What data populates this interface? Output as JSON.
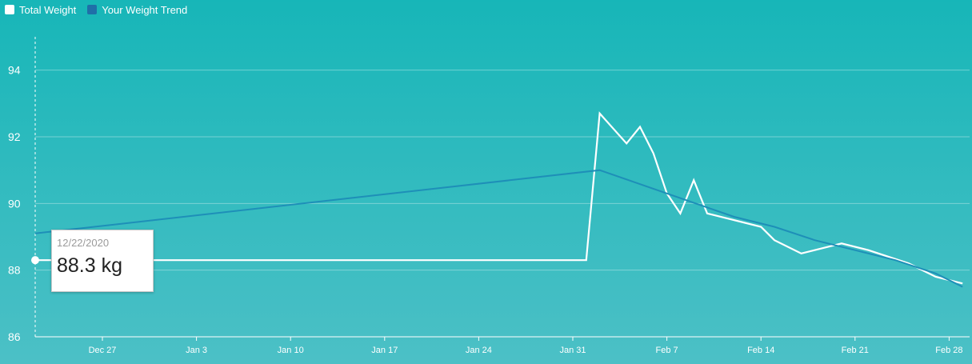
{
  "legend": {
    "items": [
      {
        "label": "Total Weight",
        "color": "#ffffff"
      },
      {
        "label": "Your Weight Trend",
        "color": "#1f6fa8"
      }
    ]
  },
  "tooltip": {
    "date": "12/22/2020",
    "value": "88.3 kg"
  },
  "colors": {
    "background_top": "#17b6b8",
    "background_bottom": "#4cc0c6",
    "total_weight_line": "#ffffff",
    "trend_line": "#1e8fb8"
  },
  "chart_data": {
    "type": "line",
    "title": "",
    "xlabel": "",
    "ylabel": "",
    "ylim": [
      86,
      95
    ],
    "xlim": [
      "2020-12-22",
      "2021-03-01"
    ],
    "grid": true,
    "legend_placement": "top-left",
    "y_ticks": [
      86,
      88,
      90,
      92,
      94
    ],
    "x_ticks": [
      {
        "date": "2020-12-27",
        "label": "Dec 27"
      },
      {
        "date": "2021-01-03",
        "label": "Jan 3"
      },
      {
        "date": "2021-01-10",
        "label": "Jan 10"
      },
      {
        "date": "2021-01-17",
        "label": "Jan 17"
      },
      {
        "date": "2021-01-24",
        "label": "Jan 24"
      },
      {
        "date": "2021-01-31",
        "label": "Jan 31"
      },
      {
        "date": "2021-02-07",
        "label": "Feb 7"
      },
      {
        "date": "2021-02-14",
        "label": "Feb 14"
      },
      {
        "date": "2021-02-21",
        "label": "Feb 21"
      },
      {
        "date": "2021-02-28",
        "label": "Feb 28"
      }
    ],
    "series": [
      {
        "name": "Total Weight",
        "color": "#ffffff",
        "points": [
          {
            "x": "2020-12-22",
            "y": 88.3
          },
          {
            "x": "2021-02-01",
            "y": 88.3
          },
          {
            "x": "2021-02-02",
            "y": 92.7
          },
          {
            "x": "2021-02-04",
            "y": 91.8
          },
          {
            "x": "2021-02-05",
            "y": 92.3
          },
          {
            "x": "2021-02-06",
            "y": 91.5
          },
          {
            "x": "2021-02-07",
            "y": 90.3
          },
          {
            "x": "2021-02-08",
            "y": 89.7
          },
          {
            "x": "2021-02-09",
            "y": 90.7
          },
          {
            "x": "2021-02-10",
            "y": 89.7
          },
          {
            "x": "2021-02-14",
            "y": 89.3
          },
          {
            "x": "2021-02-15",
            "y": 88.9
          },
          {
            "x": "2021-02-17",
            "y": 88.5
          },
          {
            "x": "2021-02-20",
            "y": 88.8
          },
          {
            "x": "2021-02-22",
            "y": 88.6
          },
          {
            "x": "2021-02-25",
            "y": 88.2
          },
          {
            "x": "2021-02-27",
            "y": 87.8
          },
          {
            "x": "2021-03-01",
            "y": 87.6
          }
        ]
      },
      {
        "name": "Your Weight Trend",
        "color": "#1e8fb8",
        "points": [
          {
            "x": "2020-12-22",
            "y": 89.1
          },
          {
            "x": "2021-02-02",
            "y": 91.0
          },
          {
            "x": "2021-02-07",
            "y": 90.3
          },
          {
            "x": "2021-02-12",
            "y": 89.6
          },
          {
            "x": "2021-02-15",
            "y": 89.3
          },
          {
            "x": "2021-02-18",
            "y": 88.9
          },
          {
            "x": "2021-02-21",
            "y": 88.6
          },
          {
            "x": "2021-02-24",
            "y": 88.3
          },
          {
            "x": "2021-02-27",
            "y": 87.9
          },
          {
            "x": "2021-03-01",
            "y": 87.5
          }
        ]
      }
    ],
    "highlight": {
      "x": "2020-12-22",
      "y": 88.3
    }
  }
}
